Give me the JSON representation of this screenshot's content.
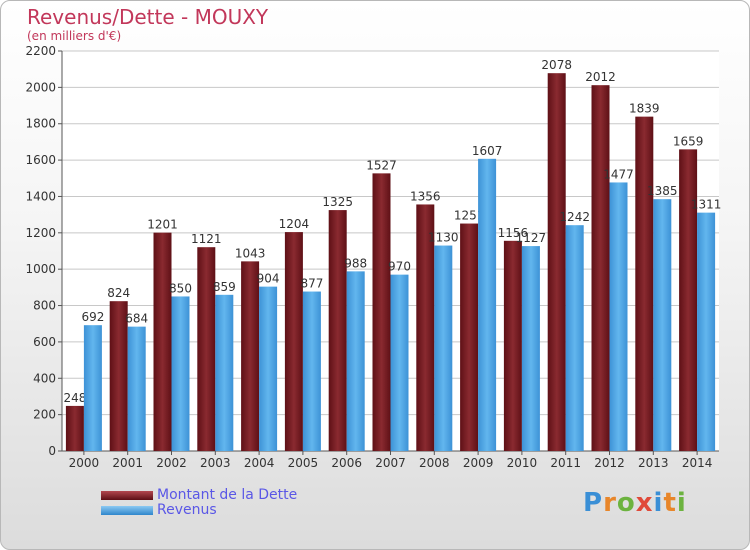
{
  "header": {
    "title": "Revenus/Dette - MOUXY",
    "subtitle": "(en milliers d'€)"
  },
  "legend": {
    "debt_label": "Montant de la Dette",
    "revenue_label": "Revenus"
  },
  "logo": {
    "text": "Proxiti"
  },
  "colors": {
    "debt": "#7a1c22",
    "revenue": "#4ba3e3",
    "title": "#c2375a",
    "legend_text": "#5a57e6"
  },
  "chart_data": {
    "type": "bar",
    "title": "Revenus/Dette - MOUXY",
    "subtitle": "(en milliers d'€)",
    "categories": [
      "2000",
      "2001",
      "2002",
      "2003",
      "2004",
      "2005",
      "2006",
      "2007",
      "2008",
      "2009",
      "2010",
      "2011",
      "2012",
      "2013",
      "2014"
    ],
    "series": [
      {
        "name": "Montant de la Dette",
        "values": [
          248,
          824,
          1201,
          1121,
          1043,
          1204,
          1325,
          1527,
          1356,
          1251,
          1156,
          2078,
          2012,
          1839,
          1659
        ]
      },
      {
        "name": "Revenus",
        "values": [
          692,
          684,
          850,
          859,
          904,
          877,
          988,
          970,
          1130,
          1607,
          1127,
          1242,
          1477,
          1385,
          1311
        ]
      }
    ],
    "ylim": [
      0,
      2200
    ],
    "yticks": [
      0,
      200,
      400,
      600,
      800,
      1000,
      1200,
      1400,
      1600,
      1800,
      2000,
      2200
    ],
    "grid": true,
    "legend_position": "bottom-left"
  }
}
